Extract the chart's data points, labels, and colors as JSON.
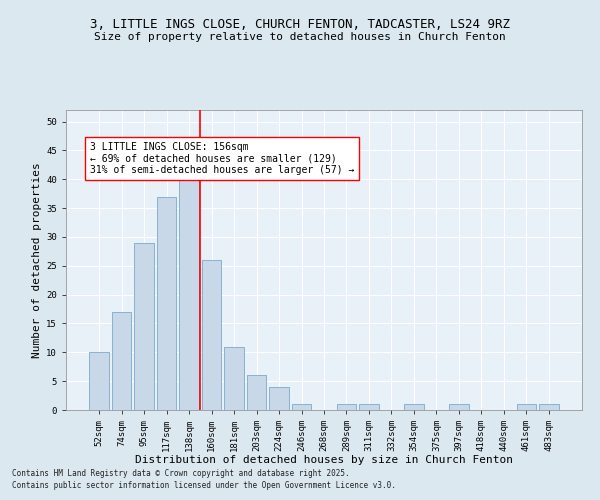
{
  "title1": "3, LITTLE INGS CLOSE, CHURCH FENTON, TADCASTER, LS24 9RZ",
  "title2": "Size of property relative to detached houses in Church Fenton",
  "xlabel": "Distribution of detached houses by size in Church Fenton",
  "ylabel": "Number of detached properties",
  "bar_labels": [
    "52sqm",
    "74sqm",
    "95sqm",
    "117sqm",
    "138sqm",
    "160sqm",
    "181sqm",
    "203sqm",
    "224sqm",
    "246sqm",
    "268sqm",
    "289sqm",
    "311sqm",
    "332sqm",
    "354sqm",
    "375sqm",
    "397sqm",
    "418sqm",
    "440sqm",
    "461sqm",
    "483sqm"
  ],
  "bar_values": [
    10,
    17,
    29,
    37,
    41,
    26,
    11,
    6,
    4,
    1,
    0,
    1,
    1,
    0,
    1,
    0,
    1,
    0,
    0,
    1,
    1
  ],
  "bar_color": "#c8d8e8",
  "bar_edgecolor": "#7aaac8",
  "vline_color": "red",
  "vline_x": 4.5,
  "annotation_text": "3 LITTLE INGS CLOSE: 156sqm\n← 69% of detached houses are smaller (129)\n31% of semi-detached houses are larger (57) →",
  "annotation_box_color": "white",
  "annotation_box_edgecolor": "red",
  "ylim": [
    0,
    52
  ],
  "yticks": [
    0,
    5,
    10,
    15,
    20,
    25,
    30,
    35,
    40,
    45,
    50
  ],
  "footnote1": "Contains HM Land Registry data © Crown copyright and database right 2025.",
  "footnote2": "Contains public sector information licensed under the Open Government Licence v3.0.",
  "bg_color": "#dce8f0",
  "plot_bg_color": "#e8f0f8",
  "grid_color": "white",
  "title_fontsize": 9,
  "subtitle_fontsize": 8,
  "tick_fontsize": 6.5,
  "label_fontsize": 8,
  "annot_fontsize": 7,
  "footnote_fontsize": 5.5
}
